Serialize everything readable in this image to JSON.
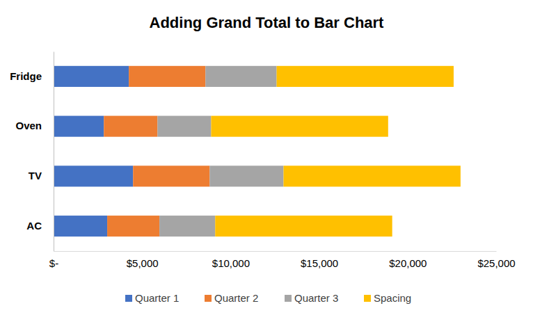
{
  "chart_data": {
    "type": "bar",
    "title": "Adding Grand Total to Bar Chart",
    "orientation": "horizontal",
    "stacked": true,
    "grid": false,
    "legend": "bottom",
    "categories": [
      "AC",
      "TV",
      "Oven",
      "Fridge"
    ],
    "series": [
      {
        "name": "Quarter 1",
        "color": "#4472c4",
        "values": [
          3030,
          4490,
          2840,
          4250
        ]
      },
      {
        "name": "Quarter 2",
        "color": "#ed7d31",
        "values": [
          2950,
          4330,
          3030,
          4330
        ]
      },
      {
        "name": "Quarter 3",
        "color": "#a5a5a5",
        "values": [
          3150,
          4170,
          3030,
          4020
        ]
      },
      {
        "name": "Spacing",
        "color": "#ffc000",
        "values": [
          10000,
          10000,
          10000,
          10000
        ]
      }
    ],
    "xlim": [
      0,
      25000
    ],
    "xticks": [
      {
        "value": 0,
        "label": "$-"
      },
      {
        "value": 5000,
        "label": "$5,000"
      },
      {
        "value": 10000,
        "label": "$10,000"
      },
      {
        "value": 15000,
        "label": "$15,000"
      },
      {
        "value": 20000,
        "label": "$20,000"
      },
      {
        "value": 25000,
        "label": "$25,000"
      }
    ]
  }
}
